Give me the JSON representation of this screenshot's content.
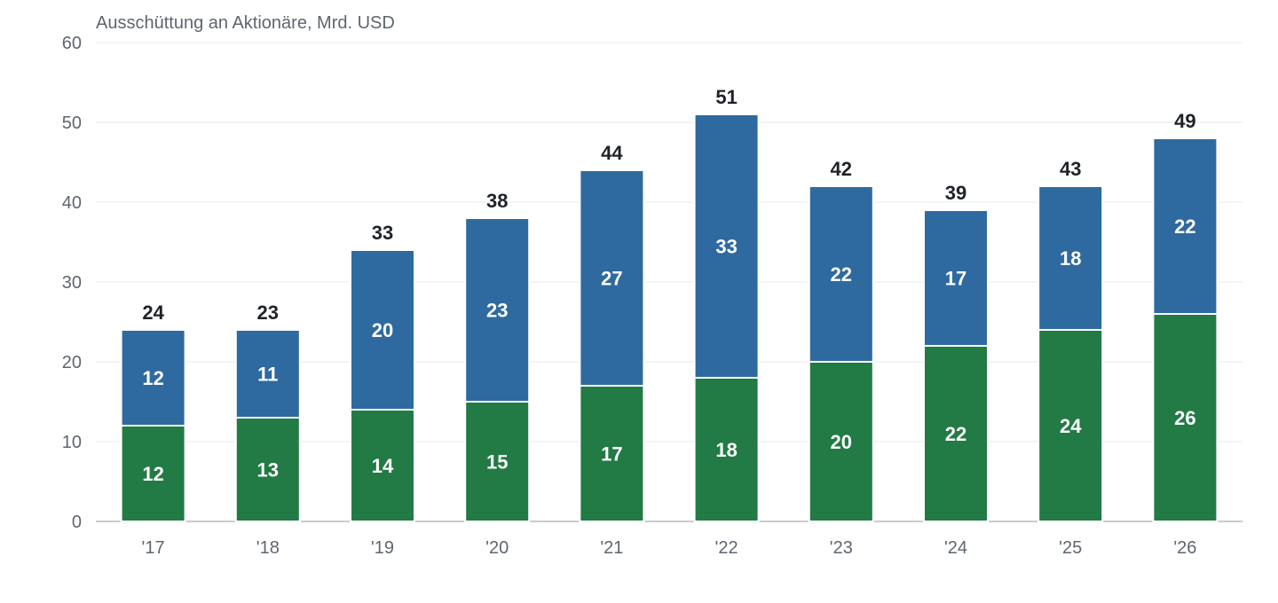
{
  "chart_data": {
    "type": "bar",
    "stacked": true,
    "title": "Ausschüttung an Aktionäre, Mrd. USD",
    "xlabel": "",
    "ylabel": "",
    "categories": [
      "'17",
      "'18",
      "'19",
      "'20",
      "'21",
      "'22",
      "'23",
      "'24",
      "'25",
      "'26"
    ],
    "series": [
      {
        "color": "#227a45",
        "values": [
          12,
          13,
          14,
          15,
          17,
          18,
          20,
          22,
          24,
          26
        ]
      },
      {
        "color": "#2e6a9f",
        "values": [
          12,
          11,
          20,
          23,
          27,
          33,
          22,
          17,
          18,
          22
        ]
      }
    ],
    "totals": [
      24,
      23,
      33,
      38,
      44,
      51,
      42,
      39,
      43,
      49
    ],
    "ylim": [
      0,
      60
    ],
    "yticks": [
      0,
      10,
      20,
      30,
      40,
      50,
      60
    ],
    "grid": true,
    "legend": "none"
  }
}
